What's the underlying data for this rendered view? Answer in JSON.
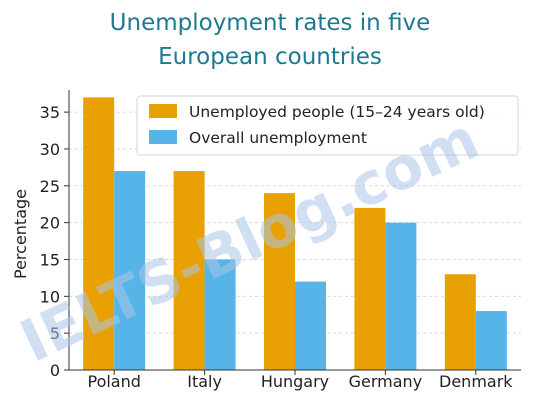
{
  "chart_data": {
    "type": "bar",
    "title_lines": [
      "Unemployment rates in five",
      "European countries"
    ],
    "ylabel": "Percentage",
    "xlabel": "",
    "categories": [
      "Poland",
      "Italy",
      "Hungary",
      "Germany",
      "Denmark"
    ],
    "series": [
      {
        "name": "Unemployed people (15–24 years old)",
        "values": [
          37,
          27,
          24,
          22,
          13
        ],
        "color": "#e8a003"
      },
      {
        "name": "Overall unemployment",
        "values": [
          27,
          15,
          12,
          20,
          8
        ],
        "color": "#56b4e9"
      }
    ],
    "ylim": [
      0,
      38
    ],
    "yticks": [
      0,
      5,
      10,
      15,
      20,
      25,
      30,
      35
    ],
    "grid": "horizontal-dashed",
    "legend_position": "top-right",
    "watermark": "IELTS-Blog.com"
  }
}
